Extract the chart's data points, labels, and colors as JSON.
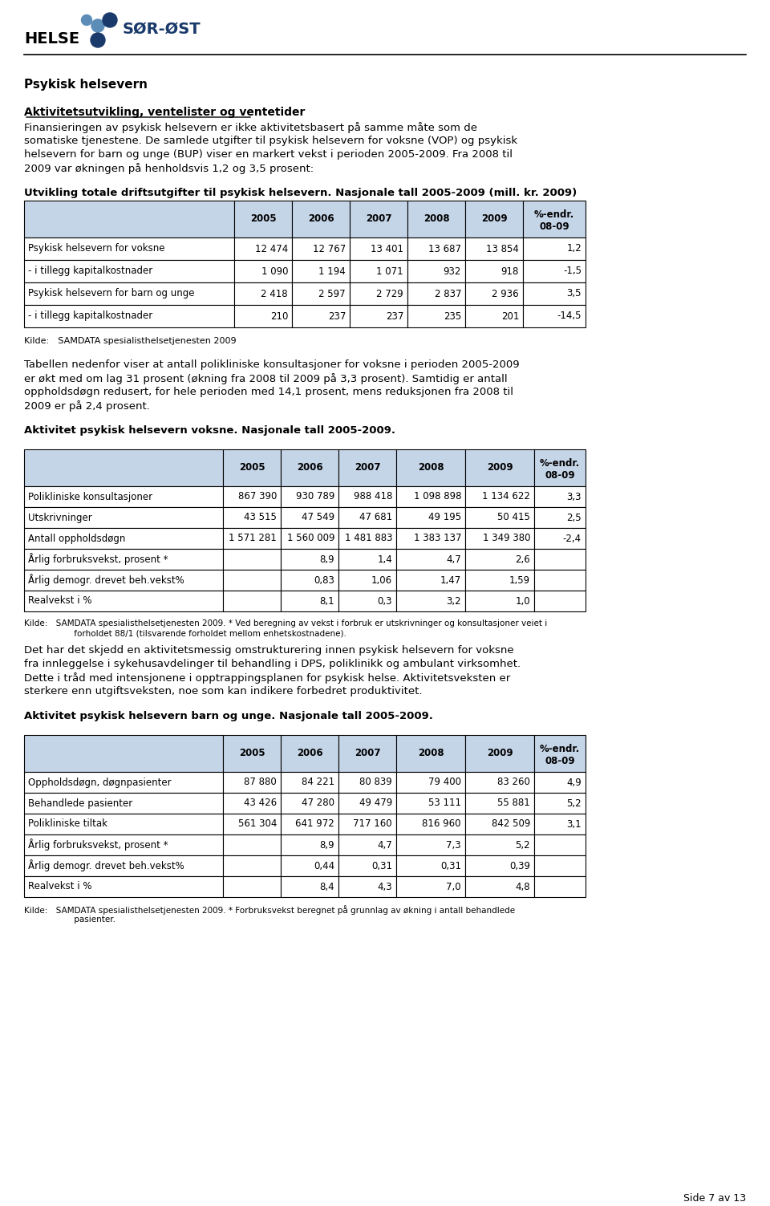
{
  "header_bold": "Psykisk helsevern",
  "section1_underline": "Aktivitetsutvikling, ventelister og ventetider",
  "section1_text": "Finansieringen av psykisk helsevern er ikke aktivitetsbasert på samme måte som de\nsomatiske tjenestene. De samlede utgifter til psykisk helsevern for voksne (VOP) og psykisk\nhelsevern for barn og unge (BUP) viser en markert vekst i perioden 2005-2009. Fra 2008 til\n2009 var økningen på henholdsvis 1,2 og 3,5 prosent:",
  "table1_title": "Utvikling totale driftsutgifter til psykisk helsevern. Nasjonale tall 2005-2009 (mill. kr. 2009)",
  "table1_headers": [
    "",
    "2005",
    "2006",
    "2007",
    "2008",
    "2009",
    "%-endr.\n08-09"
  ],
  "table1_rows": [
    [
      "Psykisk helsevern for voksne",
      "12 474",
      "12 767",
      "13 401",
      "13 687",
      "13 854",
      "1,2"
    ],
    [
      "- i tillegg kapitalkostnader",
      "1 090",
      "1 194",
      "1 071",
      "932",
      "918",
      "-1,5"
    ],
    [
      "Psykisk helsevern for barn og unge",
      "2 418",
      "2 597",
      "2 729",
      "2 837",
      "2 936",
      "3,5"
    ],
    [
      "- i tillegg kapitalkostnader",
      "210",
      "237",
      "237",
      "235",
      "201",
      "-14,5"
    ]
  ],
  "table1_source": "Kilde: SAMDATA spesialisthelsetjenesten 2009",
  "section2_text": "Tabellen nedenfor viser at antall polikliniske konsultasjoner for voksne i perioden 2005-2009\ner økt med om lag 31 prosent (økning fra 2008 til 2009 på 3,3 prosent). Samtidig er antall\noppholdsdøgn redusert, for hele perioden med 14,1 prosent, mens reduksjonen fra 2008 til\n2009 er på 2,4 prosent.",
  "table2_section_title": "Aktivitet psykisk helsevern voksne. Nasjonale tall 2005-2009.",
  "table2_headers": [
    "",
    "2005",
    "2006",
    "2007",
    "2008",
    "2009",
    "%-endr.\n08-09"
  ],
  "table2_rows": [
    [
      "Polikliniske konsultasjoner",
      "867 390",
      "930 789",
      "988 418",
      "1 098 898",
      "1 134 622",
      "3,3"
    ],
    [
      "Utskrivninger",
      "43 515",
      "47 549",
      "47 681",
      "49 195",
      "50 415",
      "2,5"
    ],
    [
      "Antall oppholdsdøgn",
      "1 571 281",
      "1 560 009",
      "1 481 883",
      "1 383 137",
      "1 349 380",
      "-2,4"
    ],
    [
      "Årlig forbruksvekst, prosent *",
      "",
      "8,9",
      "1,4",
      "4,7",
      "2,6",
      ""
    ],
    [
      "Årlig demogr. drevet beh.vekst%",
      "",
      "0,83",
      "1,06",
      "1,47",
      "1,59",
      ""
    ],
    [
      "Realvekst i %",
      "",
      "8,1",
      "0,3",
      "3,2",
      "1,0",
      ""
    ]
  ],
  "table2_source_line1": "Kilde: SAMDATA spesialisthelsetjenesten 2009. * Ved beregning av vekst i forbruk er utskrivninger og konsultasjoner veiet i",
  "table2_source_line2": "      forholdet 88/1 (tilsvarende forholdet mellom enhetskostnadene).",
  "section3_text": "Det har det skjedd en aktivitetsmessig omstrukturering innen psykisk helsevern for voksne\nfra innleggelse i sykehusavdelinger til behandling i DPS, poliklinikk og ambulant virksomhet.\nDette i tråd med intensjonene i opptrappingsplanen for psykisk helse. Aktivitetsveksten er\nsterkere enn utgiftsveksten, noe som kan indikere forbedret produktivitet.",
  "table3_section_title": "Aktivitet psykisk helsevern barn og unge. Nasjonale tall 2005-2009.",
  "table3_headers": [
    "",
    "2005",
    "2006",
    "2007",
    "2008",
    "2009",
    "%-endr.\n08-09"
  ],
  "table3_rows": [
    [
      "Oppholdsdøgn, døgnpasienter",
      "87 880",
      "84 221",
      "80 839",
      "79 400",
      "83 260",
      "4,9"
    ],
    [
      "Behandlede pasienter",
      "43 426",
      "47 280",
      "49 479",
      "53 111",
      "55 881",
      "5,2"
    ],
    [
      "Polikliniske tiltak",
      "561 304",
      "641 972",
      "717 160",
      "816 960",
      "842 509",
      "3,1"
    ],
    [
      "Årlig forbruksvekst, prosent *",
      "",
      "8,9",
      "4,7",
      "7,3",
      "5,2",
      ""
    ],
    [
      "Årlig demogr. drevet beh.vekst%",
      "",
      "0,44",
      "0,31",
      "0,31",
      "0,39",
      ""
    ],
    [
      "Realvekst i %",
      "",
      "8,4",
      "4,3",
      "7,0",
      "4,8",
      ""
    ]
  ],
  "table3_source_line1": "Kilde: SAMDATA spesialisthelsetjenesten 2009. * Forbruksvekst beregnet på grunnlag av økning i antall behandlede",
  "table3_source_line2": "      pasienter.",
  "footer": "Side 7 av 13",
  "header_color": "#c5d5e8",
  "logo_blue_dark": "#1a3a6b",
  "logo_blue_light": "#5b8db8"
}
